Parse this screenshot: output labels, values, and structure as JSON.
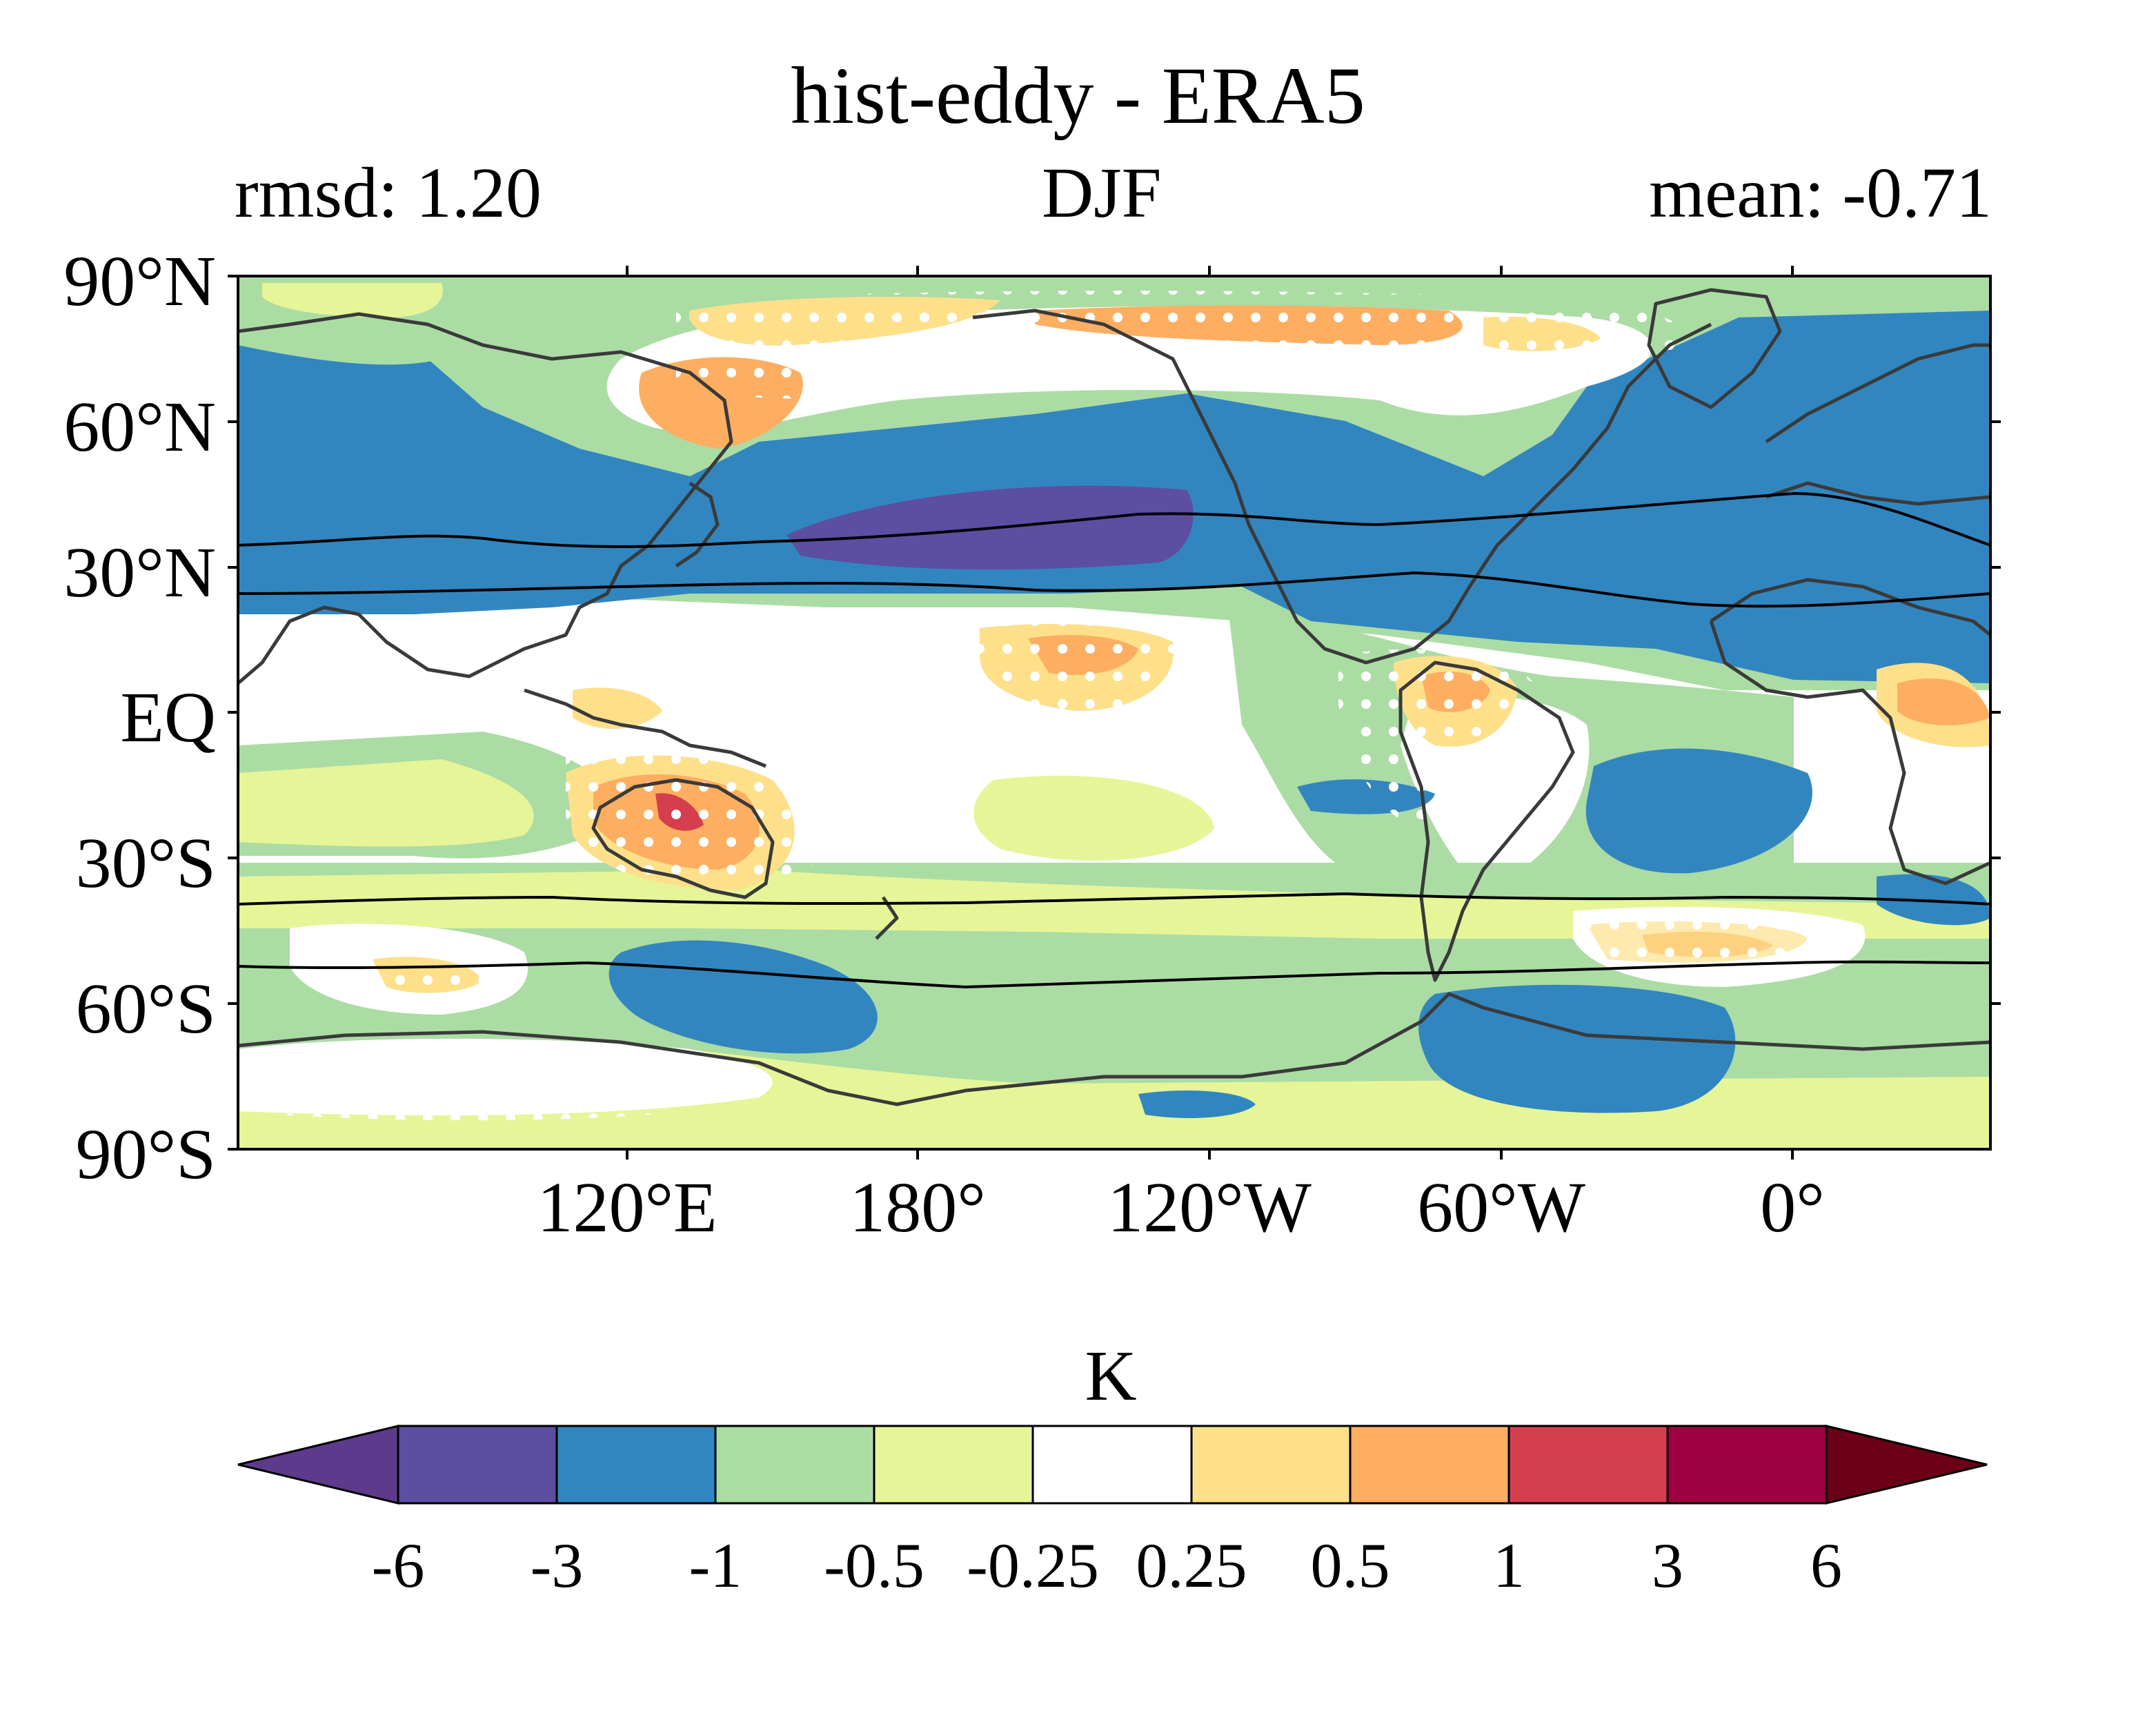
{
  "title": "hist-eddy - ERA5",
  "subtitle_left": "rmsd: 1.20",
  "subtitle_center": "DJF",
  "subtitle_right": "mean: -0.71",
  "lat_labels": [
    "90°N",
    "60°N",
    "30°N",
    "EQ",
    "30°S",
    "60°S",
    "90°S"
  ],
  "lon_labels": [
    "120°E",
    "180°",
    "120°W",
    "60°W",
    "0°"
  ],
  "colorbar": {
    "label": "K",
    "ticks": [
      "-6",
      "-3",
      "-1",
      "-0.5",
      "-0.25",
      "0.25",
      "0.5",
      "1",
      "3",
      "6"
    ],
    "colors": [
      "#5e3a8c",
      "#5c4ea1",
      "#3286bf",
      "#abdca4",
      "#e6f598",
      "#ffffff",
      "#fee08b",
      "#fdae61",
      "#d53e4f",
      "#9e0142",
      "#6b0016"
    ]
  },
  "map": {
    "projection": "plate-carree",
    "central_longitude": "150°E",
    "variable_units": "K",
    "coastline_color": "#3a3a3a",
    "stipple_color": "#ffffff"
  }
}
